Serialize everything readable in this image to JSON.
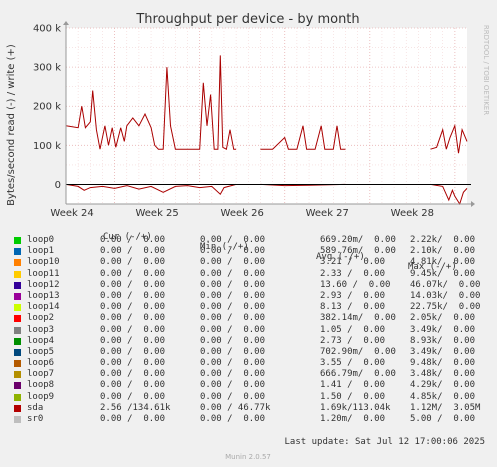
{
  "chart_data": {
    "type": "line",
    "title": "Throughput per device - by month",
    "ylabel": "Bytes/second read (-) / write (+)",
    "y_ticks": [
      "400 k",
      "300 k",
      "200 k",
      "100 k",
      "0"
    ],
    "y_tick_values": [
      400000,
      300000,
      200000,
      100000,
      0
    ],
    "ylim": [
      -50000,
      400000
    ],
    "x_ticks": [
      "Week 24",
      "Week 25",
      "Week 26",
      "Week 27",
      "Week 28"
    ],
    "x_tick_positions": [
      0.5,
      7.5,
      14.5,
      21.5,
      28.5
    ],
    "xlim": [
      0,
      33
    ],
    "grid": true,
    "series": [
      {
        "name": "sda",
        "color": "#aa0000",
        "write_segments": [
          [
            [
              0,
              150000
            ],
            [
              1,
              145000
            ],
            [
              1.3,
              200000
            ],
            [
              1.6,
              145000
            ],
            [
              2,
              160000
            ],
            [
              2.2,
              240000
            ],
            [
              2.5,
              140000
            ],
            [
              2.8,
              90000
            ],
            [
              3.2,
              150000
            ],
            [
              3.5,
              100000
            ],
            [
              3.8,
              145000
            ],
            [
              4.1,
              95000
            ],
            [
              4.5,
              145000
            ],
            [
              4.8,
              110000
            ],
            [
              5,
              150000
            ],
            [
              5.5,
              170000
            ],
            [
              6,
              150000
            ],
            [
              6.5,
              180000
            ],
            [
              7,
              145000
            ],
            [
              7.3,
              100000
            ],
            [
              7.6,
              90000
            ],
            [
              8,
              90000
            ],
            [
              8.3,
              300000
            ],
            [
              8.6,
              150000
            ],
            [
              9,
              90000
            ],
            [
              10,
              90000
            ],
            [
              11,
              90000
            ],
            [
              11.3,
              260000
            ],
            [
              11.6,
              150000
            ],
            [
              11.9,
              230000
            ],
            [
              12.2,
              90000
            ],
            [
              12.5,
              90000
            ],
            [
              12.7,
              330000
            ],
            [
              12.9,
              95000
            ],
            [
              13.2,
              90000
            ],
            [
              13.5,
              140000
            ],
            [
              13.8,
              90000
            ],
            [
              14,
              90000
            ]
          ],
          [
            [
              16,
              90000
            ],
            [
              17,
              90000
            ],
            [
              18,
              120000
            ],
            [
              18.3,
              90000
            ],
            [
              19,
              90000
            ],
            [
              19.5,
              150000
            ],
            [
              19.8,
              90000
            ],
            [
              20.5,
              90000
            ],
            [
              21,
              150000
            ],
            [
              21.3,
              90000
            ],
            [
              22,
              90000
            ],
            [
              22.3,
              150000
            ],
            [
              22.6,
              90000
            ],
            [
              23,
              90000
            ]
          ],
          [
            [
              30,
              90000
            ],
            [
              30.5,
              95000
            ],
            [
              31,
              140000
            ],
            [
              31.3,
              90000
            ],
            [
              31.6,
              120000
            ],
            [
              32,
              150000
            ],
            [
              32.3,
              80000
            ],
            [
              32.6,
              140000
            ],
            [
              33,
              110000
            ]
          ]
        ],
        "read_segments": [
          [
            [
              0,
              0
            ],
            [
              1,
              -5000
            ],
            [
              1.5,
              -15000
            ],
            [
              2,
              -8000
            ],
            [
              3,
              -5000
            ],
            [
              4,
              -10000
            ],
            [
              5,
              -3000
            ],
            [
              6,
              -12000
            ],
            [
              7,
              -5000
            ],
            [
              8,
              -20000
            ],
            [
              9,
              -5000
            ],
            [
              10,
              -3000
            ],
            [
              11,
              -8000
            ],
            [
              12,
              -5000
            ],
            [
              12.7,
              -25000
            ],
            [
              13,
              -8000
            ],
            [
              14,
              0
            ]
          ],
          [
            [
              16,
              0
            ],
            [
              18,
              -3000
            ],
            [
              20,
              -2000
            ],
            [
              23,
              0
            ]
          ],
          [
            [
              30,
              0
            ],
            [
              31,
              -5000
            ],
            [
              31.5,
              -40000
            ],
            [
              31.8,
              -15000
            ],
            [
              32,
              -30000
            ],
            [
              32.4,
              -50000
            ],
            [
              32.7,
              -20000
            ],
            [
              33,
              -10000
            ]
          ]
        ]
      }
    ]
  },
  "side_note": "RRDTOOL / TOBI OETIKER",
  "legend_header": {
    "cur": "Cur (-/+)",
    "min": "Min (-/+)",
    "avg": "Avg (-/+)",
    "max": "Max (-/+)"
  },
  "legend": [
    {
      "name": "loop0",
      "color": "#00cc00",
      "cur": "0.00 /  0.00",
      "min": "0.00 /  0.00",
      "avg": "669.20m/  0.00",
      "max": "2.22k/  0.00"
    },
    {
      "name": "loop1",
      "color": "#0066b3",
      "cur": "0.00 /  0.00",
      "min": "0.00 /  0.00",
      "avg": "589.76m/  0.00",
      "max": "2.10k/  0.00"
    },
    {
      "name": "loop10",
      "color": "#ff8000",
      "cur": "0.00 /  0.00",
      "min": "0.00 /  0.00",
      "avg": "3.21 /  0.00",
      "max": "4.81k/  0.00"
    },
    {
      "name": "loop11",
      "color": "#ffcc00",
      "cur": "0.00 /  0.00",
      "min": "0.00 /  0.00",
      "avg": "2.33 /  0.00",
      "max": "9.45k/  0.00"
    },
    {
      "name": "loop12",
      "color": "#330099",
      "cur": "0.00 /  0.00",
      "min": "0.00 /  0.00",
      "avg": "13.60 /  0.00",
      "max": "46.07k/  0.00"
    },
    {
      "name": "loop13",
      "color": "#990099",
      "cur": "0.00 /  0.00",
      "min": "0.00 /  0.00",
      "avg": "2.93 /  0.00",
      "max": "14.03k/  0.00"
    },
    {
      "name": "loop14",
      "color": "#ccff00",
      "cur": "0.00 /  0.00",
      "min": "0.00 /  0.00",
      "avg": "8.13 /  0.00",
      "max": "22.75k/  0.00"
    },
    {
      "name": "loop2",
      "color": "#ff0000",
      "cur": "0.00 /  0.00",
      "min": "0.00 /  0.00",
      "avg": "382.14m/  0.00",
      "max": "2.05k/  0.00"
    },
    {
      "name": "loop3",
      "color": "#808080",
      "cur": "0.00 /  0.00",
      "min": "0.00 /  0.00",
      "avg": "1.05 /  0.00",
      "max": "3.49k/  0.00"
    },
    {
      "name": "loop4",
      "color": "#008f00",
      "cur": "0.00 /  0.00",
      "min": "0.00 /  0.00",
      "avg": "2.73 /  0.00",
      "max": "8.93k/  0.00"
    },
    {
      "name": "loop5",
      "color": "#00487d",
      "cur": "0.00 /  0.00",
      "min": "0.00 /  0.00",
      "avg": "702.90m/  0.00",
      "max": "3.49k/  0.00"
    },
    {
      "name": "loop6",
      "color": "#b35a00",
      "cur": "0.00 /  0.00",
      "min": "0.00 /  0.00",
      "avg": "3.55 /  0.00",
      "max": "9.48k/  0.00"
    },
    {
      "name": "loop7",
      "color": "#b38f00",
      "cur": "0.00 /  0.00",
      "min": "0.00 /  0.00",
      "avg": "666.79m/  0.00",
      "max": "3.48k/  0.00"
    },
    {
      "name": "loop8",
      "color": "#6b006b",
      "cur": "0.00 /  0.00",
      "min": "0.00 /  0.00",
      "avg": "1.41 /  0.00",
      "max": "4.29k/  0.00"
    },
    {
      "name": "loop9",
      "color": "#8fb300",
      "cur": "0.00 /  0.00",
      "min": "0.00 /  0.00",
      "avg": "1.50 /  0.00",
      "max": "4.85k/  0.00"
    },
    {
      "name": "sda",
      "color": "#b30000",
      "cur": "2.56 /134.61k",
      "min": "0.00 / 46.77k",
      "avg": "1.69k/113.04k",
      "max": "1.12M/  3.05M"
    },
    {
      "name": "sr0",
      "color": "#bebebe",
      "cur": "0.00 /  0.00",
      "min": "0.00 /  0.00",
      "avg": "1.20m/  0.00",
      "max": "5.00 /  0.00"
    }
  ],
  "last_update": "Last update: Sat Jul 12 17:00:06 2025",
  "footer": "Munin 2.0.57"
}
